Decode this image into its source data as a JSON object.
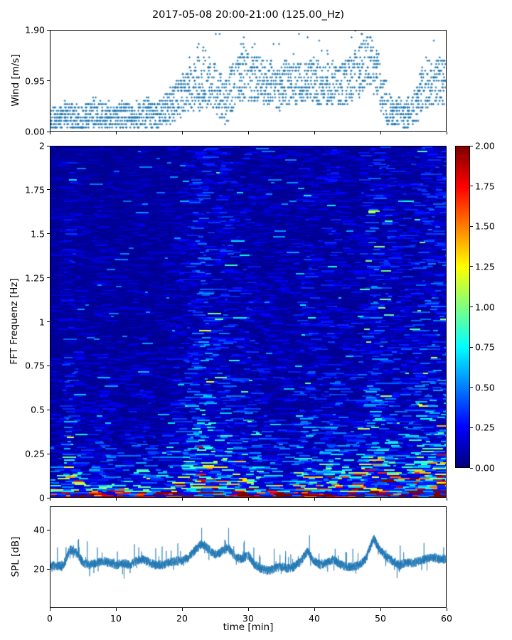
{
  "figure": {
    "title": "2017-05-08 20:00-21:00 (125.00_Hz)",
    "xlabel": "time [min]",
    "background": "#ffffff"
  },
  "colors": {
    "marker": "#1f77b4",
    "spl_line": "#1f77b4",
    "axis": "#000000",
    "text": "#000000"
  },
  "axes": {
    "wind": {
      "ylabel": "Wind [m/s]",
      "ytick_labels": [
        "1.90",
        "0.95",
        "0.00"
      ],
      "ytick_values": [
        1.9,
        0.95,
        0.0
      ],
      "ylim": [
        0.0,
        1.9
      ]
    },
    "spec": {
      "ylabel": "FFT Frequenz [Hz]",
      "ytick_labels": [
        "2",
        "1.75",
        "1.5",
        "1.25",
        "1",
        "0.75",
        "0.5",
        "0.25",
        "0"
      ],
      "ytick_values": [
        2,
        1.75,
        1.5,
        1.25,
        1,
        0.75,
        0.5,
        0.25,
        0
      ],
      "ylim": [
        0,
        2
      ]
    },
    "colorbar": {
      "tick_labels": [
        "2.00",
        "1.75",
        "1.50",
        "1.25",
        "1.00",
        "0.75",
        "0.50",
        "0.25",
        "0.00"
      ],
      "tick_values": [
        2,
        1.75,
        1.5,
        1.25,
        1,
        0.75,
        0.5,
        0.25,
        0
      ],
      "clim": [
        0.0,
        2.0
      ],
      "colormap": "jet"
    },
    "spl": {
      "ylabel": "SPL [dB]",
      "ytick_labels": [
        "40",
        "20"
      ],
      "ytick_values": [
        40,
        20
      ],
      "ylim": [
        0,
        52
      ]
    },
    "x": {
      "label": "time [min]",
      "tick_labels": [
        "0",
        "10",
        "20",
        "30",
        "40",
        "50",
        "60"
      ],
      "tick_values": [
        0,
        10,
        20,
        30,
        40,
        50,
        60
      ],
      "xlim": [
        0,
        60
      ]
    }
  },
  "chart_data": [
    {
      "type": "scatter",
      "name": "wind_speed",
      "ylabel": "Wind [m/s]",
      "xlabel": "",
      "xlim": [
        0,
        60
      ],
      "ylim": [
        0.0,
        1.9
      ],
      "yticks": [
        0.0,
        0.95,
        1.9
      ],
      "marker": "+",
      "marker_color": "#1f77b4",
      "quantization_step_ms": 0.0633,
      "samples_per_minute": 36,
      "per_minute_mean": [
        0.25,
        0.25,
        0.3,
        0.3,
        0.25,
        0.3,
        0.35,
        0.3,
        0.3,
        0.25,
        0.3,
        0.3,
        0.25,
        0.3,
        0.35,
        0.3,
        0.3,
        0.4,
        0.5,
        0.6,
        0.7,
        0.8,
        0.9,
        1.0,
        0.9,
        0.7,
        0.55,
        0.8,
        1.0,
        1.1,
        1.0,
        1.0,
        0.9,
        0.9,
        0.8,
        0.9,
        0.9,
        0.9,
        0.9,
        0.9,
        0.9,
        0.85,
        0.9,
        0.85,
        0.9,
        0.95,
        1.1,
        1.3,
        1.3,
        1.1,
        0.6,
        0.4,
        0.35,
        0.3,
        0.35,
        0.5,
        0.8,
        0.9,
        0.9,
        0.95
      ],
      "per_minute_spread": [
        0.22,
        0.22,
        0.25,
        0.25,
        0.22,
        0.25,
        0.28,
        0.25,
        0.25,
        0.22,
        0.25,
        0.25,
        0.22,
        0.25,
        0.28,
        0.25,
        0.25,
        0.3,
        0.35,
        0.38,
        0.4,
        0.45,
        0.5,
        0.55,
        0.5,
        0.45,
        0.4,
        0.45,
        0.5,
        0.52,
        0.45,
        0.45,
        0.42,
        0.42,
        0.4,
        0.42,
        0.42,
        0.42,
        0.42,
        0.42,
        0.42,
        0.4,
        0.42,
        0.4,
        0.42,
        0.45,
        0.5,
        0.55,
        0.55,
        0.5,
        0.38,
        0.3,
        0.28,
        0.25,
        0.28,
        0.35,
        0.42,
        0.45,
        0.45,
        0.45
      ]
    },
    {
      "type": "heatmap",
      "name": "fft_spectrogram",
      "xlabel": "",
      "ylabel": "FFT Frequenz [Hz]",
      "xlim": [
        0,
        60
      ],
      "ylim": [
        0,
        2
      ],
      "clim": [
        0,
        2
      ],
      "colormap": "jet",
      "frequency_nodes_hz": [
        0,
        0.05,
        0.1,
        0.15,
        0.2,
        0.3,
        0.4,
        0.5,
        0.75,
        1.0,
        1.25,
        1.5,
        1.75,
        2.0
      ],
      "intensity_vs_frequency": [
        1.0,
        0.92,
        0.72,
        0.55,
        0.45,
        0.33,
        0.27,
        0.23,
        0.19,
        0.17,
        0.16,
        0.15,
        0.14,
        0.13
      ],
      "activity_vs_minute": [
        0.35,
        0.3,
        0.45,
        0.7,
        0.5,
        0.35,
        0.3,
        0.35,
        0.45,
        0.35,
        0.3,
        0.35,
        0.3,
        0.4,
        0.45,
        0.35,
        0.3,
        0.35,
        0.4,
        0.45,
        0.5,
        0.6,
        0.85,
        1.0,
        0.95,
        0.8,
        0.75,
        0.8,
        0.6,
        0.6,
        0.7,
        0.5,
        0.45,
        0.4,
        0.4,
        0.45,
        0.4,
        0.45,
        0.55,
        0.7,
        0.6,
        0.55,
        0.6,
        0.65,
        0.55,
        0.5,
        0.5,
        0.6,
        0.8,
        1.0,
        0.9,
        0.8,
        0.7,
        0.6,
        0.65,
        0.7,
        0.8,
        0.85,
        0.9,
        0.85
      ]
    },
    {
      "type": "line",
      "name": "spl",
      "ylabel": "SPL [dB]",
      "xlim": [
        0,
        60
      ],
      "ylim": [
        0,
        52
      ],
      "yticks": [
        20,
        40
      ],
      "line_color": "#1f77b4",
      "samples_per_minute": 70,
      "per_minute_level_db": [
        22,
        21,
        22,
        30,
        28,
        23,
        22,
        23,
        24,
        23,
        22,
        23,
        22,
        24,
        25,
        23,
        22,
        22,
        23,
        24,
        24,
        26,
        30,
        33,
        30,
        27,
        29,
        31,
        26,
        25,
        27,
        22,
        20,
        19,
        20,
        21,
        20,
        21,
        24,
        29,
        24,
        22,
        23,
        25,
        22,
        21,
        21,
        22,
        26,
        36,
        30,
        26,
        24,
        22,
        23,
        23,
        24,
        25,
        26,
        25
      ],
      "noise_peak_to_peak_db": 4.8,
      "spike_max_db": 8
    }
  ]
}
